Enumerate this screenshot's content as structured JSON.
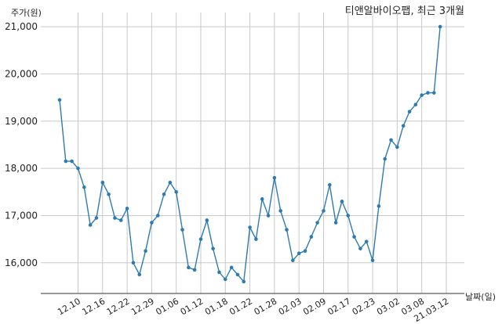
{
  "chart_data": {
    "type": "line",
    "title": "티앤알바이오팹, 최근 3개월",
    "xlabel": "날짜(일)",
    "ylabel": "주가(원)",
    "ylim": [
      15350,
      21300
    ],
    "yticks": [
      16000,
      17000,
      18000,
      19000,
      20000,
      21000
    ],
    "ytick_labels": [
      "16,000",
      "17,000",
      "18,000",
      "19,000",
      "20,000",
      "21,000"
    ],
    "grid": true,
    "color": "#2e7bb0",
    "x_tick_labels": [
      {
        "index": 3,
        "label": "12.10"
      },
      {
        "index": 7,
        "label": "12.16"
      },
      {
        "index": 11,
        "label": "12.22"
      },
      {
        "index": 15,
        "label": "12.29"
      },
      {
        "index": 19,
        "label": "01.06"
      },
      {
        "index": 23,
        "label": "01.12"
      },
      {
        "index": 27,
        "label": "01.18"
      },
      {
        "index": 31,
        "label": "01.22"
      },
      {
        "index": 35,
        "label": "01.28"
      },
      {
        "index": 39,
        "label": "02.03"
      },
      {
        "index": 43,
        "label": "02.09"
      },
      {
        "index": 47,
        "label": "02.17"
      },
      {
        "index": 51,
        "label": "02.23"
      },
      {
        "index": 55,
        "label": "03.02"
      },
      {
        "index": 59,
        "label": "03.08"
      },
      {
        "index": 63,
        "label": "21.03.12"
      }
    ],
    "series": [
      {
        "values": [
          19450,
          18150,
          18150,
          18000,
          17600,
          16800,
          16950,
          17700,
          17450,
          16950,
          16900,
          17150,
          16000,
          15750,
          16250,
          16850,
          17000,
          17450,
          17700,
          17500,
          16700,
          15900,
          15850,
          16500,
          16900,
          16300,
          15800,
          15650,
          15900,
          15750,
          15600,
          16750,
          16500,
          17350,
          17000,
          17800,
          17100,
          16700,
          16050,
          16200,
          16250,
          16550,
          16850,
          17100,
          17650,
          16850,
          17300,
          17000,
          16550,
          16300,
          16450,
          16050,
          17200,
          18200,
          18600,
          18450,
          18900,
          19200,
          19350,
          19550,
          19600,
          19600,
          21000
        ]
      }
    ]
  }
}
